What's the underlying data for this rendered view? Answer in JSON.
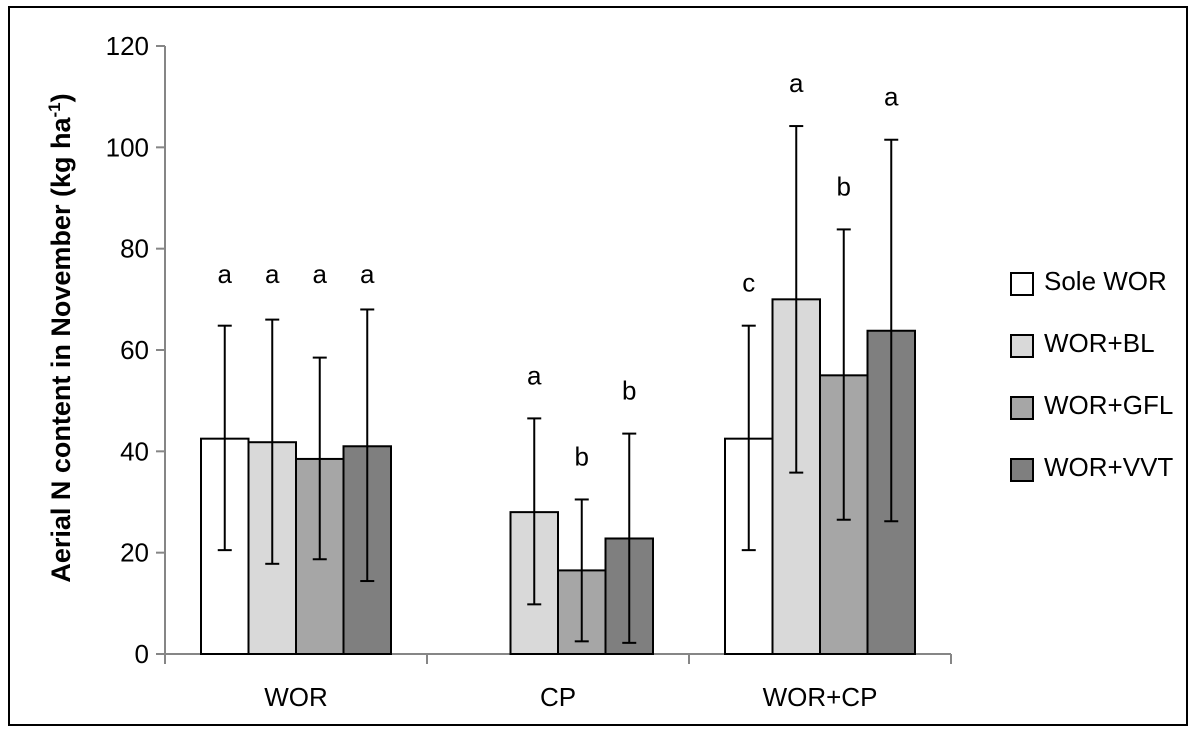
{
  "chart_data": {
    "type": "bar",
    "ylabel": "Aerial N content in November",
    "ylabel_unit_base": "(kg ha",
    "ylabel_unit_sup": "-1",
    "ylabel_unit_end": ")",
    "ylim": [
      0,
      120
    ],
    "yticks": [
      "0",
      "20",
      "40",
      "60",
      "80",
      "100",
      "120"
    ],
    "grid": false,
    "legend_position": "right",
    "categories": [
      "WOR",
      "CP",
      "WOR+CP"
    ],
    "series": [
      {
        "name": "Sole WOR",
        "color": "#ffffff",
        "values": [
          42.5,
          null,
          42.5
        ],
        "err_low": [
          20.5,
          null,
          20.5
        ],
        "err_high": [
          64.8,
          null,
          64.8
        ],
        "letters": [
          "a",
          null,
          "c"
        ]
      },
      {
        "name": "WOR+BL",
        "color": "#d9d9d9",
        "values": [
          41.8,
          28.0,
          70.0
        ],
        "err_low": [
          17.8,
          9.8,
          35.8
        ],
        "err_high": [
          66.0,
          46.5,
          104.2
        ],
        "letters": [
          "a",
          "a",
          "a"
        ]
      },
      {
        "name": "WOR+GFL",
        "color": "#a6a6a6",
        "values": [
          38.5,
          16.5,
          55.0
        ],
        "err_low": [
          18.7,
          2.5,
          26.5
        ],
        "err_high": [
          58.5,
          30.5,
          83.8
        ],
        "letters": [
          "a",
          "b",
          "b"
        ]
      },
      {
        "name": "WOR+VVT",
        "color": "#7f7f7f",
        "values": [
          41.0,
          22.8,
          63.8
        ],
        "err_low": [
          14.4,
          2.2,
          26.2
        ],
        "err_high": [
          68.0,
          43.5,
          101.5
        ],
        "letters": [
          "a",
          "b",
          "a"
        ]
      }
    ]
  }
}
